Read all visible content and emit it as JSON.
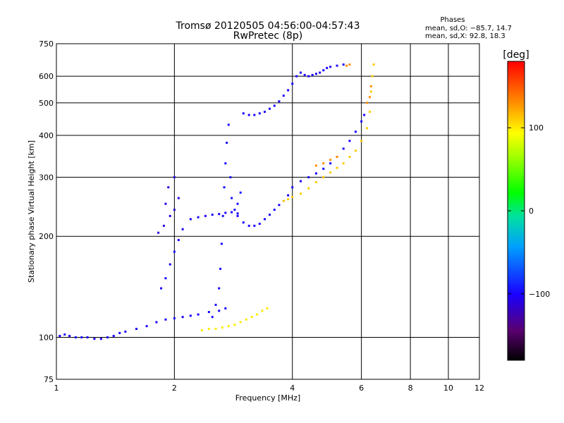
{
  "chart_data": {
    "type": "scatter",
    "title": "Tromsø 20120505 04:56:00-04:57:43",
    "subtitle": "RwPretec (8p)",
    "xlabel": "Frequency [MHz]",
    "ylabel": "Stationary phase Virtual Height [km]",
    "x_scale": "log",
    "y_scale": "log",
    "xlim": [
      1,
      12
    ],
    "ylim": [
      75,
      750
    ],
    "x_ticks": [
      1,
      2,
      4,
      6,
      8,
      10,
      12
    ],
    "x_tick_labels": [
      "1",
      "2",
      "4",
      "6",
      "8",
      "10",
      "12"
    ],
    "y_ticks": [
      75,
      100,
      200,
      300,
      400,
      500,
      600,
      750
    ],
    "y_tick_labels": [
      "75",
      "100",
      "200",
      "300",
      "400",
      "500",
      "600",
      "750"
    ],
    "grid": true,
    "phases_box": {
      "heading": "Phases",
      "line_o": "mean, sd,O: −85.7, 14.7",
      "line_x": "mean, sd,X:  92.8, 18.3"
    },
    "colorbar": {
      "label": "[deg]",
      "range": [
        -180,
        180
      ],
      "ticks": [
        100,
        0,
        -100
      ],
      "tick_labels": [
        "100",
        "0",
        "−100"
      ],
      "colormap": "rainbow"
    },
    "series": [
      {
        "phase": -100,
        "points": [
          [
            1.02,
            101
          ],
          [
            1.05,
            102
          ],
          [
            1.08,
            101
          ],
          [
            1.12,
            100
          ],
          [
            1.16,
            100
          ],
          [
            1.2,
            100
          ],
          [
            1.25,
            99
          ],
          [
            1.3,
            99
          ],
          [
            1.35,
            100
          ],
          [
            1.4,
            101
          ],
          [
            1.45,
            103
          ],
          [
            1.5,
            104
          ],
          [
            1.6,
            106
          ],
          [
            1.7,
            108
          ],
          [
            1.8,
            111
          ],
          [
            1.9,
            113
          ],
          [
            2.0,
            114
          ],
          [
            2.1,
            115
          ],
          [
            2.2,
            116
          ],
          [
            2.3,
            117
          ],
          [
            2.45,
            119
          ],
          [
            2.6,
            120
          ],
          [
            2.7,
            122
          ]
        ]
      },
      {
        "phase": -100,
        "points": [
          [
            1.85,
            140
          ],
          [
            1.9,
            150
          ],
          [
            1.95,
            165
          ],
          [
            2.0,
            180
          ],
          [
            2.05,
            195
          ],
          [
            2.1,
            210
          ],
          [
            2.2,
            225
          ],
          [
            2.3,
            228
          ],
          [
            2.4,
            230
          ],
          [
            2.5,
            232
          ],
          [
            2.6,
            233
          ],
          [
            2.7,
            235
          ],
          [
            2.8,
            236
          ],
          [
            2.9,
            234
          ]
        ]
      },
      {
        "phase": -110,
        "points": [
          [
            1.82,
            205
          ],
          [
            1.88,
            215
          ],
          [
            1.95,
            230
          ],
          [
            1.9,
            250
          ],
          [
            2.0,
            240
          ],
          [
            2.05,
            260
          ],
          [
            1.93,
            280
          ],
          [
            2.0,
            300
          ]
        ]
      },
      {
        "phase": -95,
        "points": [
          [
            2.5,
            115
          ],
          [
            2.55,
            125
          ],
          [
            2.6,
            140
          ],
          [
            2.62,
            160
          ],
          [
            2.64,
            190
          ],
          [
            2.66,
            230
          ],
          [
            2.68,
            280
          ],
          [
            2.7,
            330
          ],
          [
            2.72,
            380
          ],
          [
            2.75,
            430
          ],
          [
            2.78,
            300
          ],
          [
            2.8,
            260
          ],
          [
            2.85,
            240
          ],
          [
            2.9,
            250
          ],
          [
            2.95,
            270
          ]
        ]
      },
      {
        "phase": -100,
        "points": [
          [
            2.9,
            230
          ],
          [
            3.0,
            220
          ],
          [
            3.1,
            215
          ],
          [
            3.2,
            215
          ],
          [
            3.3,
            218
          ],
          [
            3.4,
            225
          ],
          [
            3.5,
            232
          ],
          [
            3.6,
            240
          ],
          [
            3.7,
            248
          ],
          [
            3.8,
            255
          ],
          [
            3.9,
            265
          ],
          [
            4.0,
            280
          ],
          [
            4.2,
            292
          ],
          [
            4.4,
            300
          ],
          [
            4.6,
            308
          ],
          [
            4.8,
            318
          ],
          [
            5.0,
            330
          ],
          [
            5.2,
            345
          ],
          [
            5.4,
            365
          ],
          [
            5.6,
            385
          ],
          [
            5.8,
            410
          ],
          [
            6.0,
            440
          ],
          [
            6.1,
            460
          ]
        ]
      },
      {
        "phase": -100,
        "points": [
          [
            3.0,
            465
          ],
          [
            3.1,
            460
          ],
          [
            3.2,
            460
          ],
          [
            3.3,
            465
          ],
          [
            3.4,
            470
          ],
          [
            3.5,
            480
          ],
          [
            3.6,
            490
          ],
          [
            3.7,
            505
          ],
          [
            3.8,
            525
          ],
          [
            3.9,
            545
          ],
          [
            4.0,
            570
          ],
          [
            4.1,
            600
          ],
          [
            4.2,
            615
          ],
          [
            4.3,
            605
          ],
          [
            4.4,
            600
          ],
          [
            4.5,
            605
          ],
          [
            4.6,
            610
          ],
          [
            4.7,
            615
          ],
          [
            4.8,
            625
          ],
          [
            4.9,
            635
          ],
          [
            5.0,
            640
          ],
          [
            5.2,
            645
          ],
          [
            5.4,
            650
          ]
        ]
      },
      {
        "phase": 100,
        "points": [
          [
            2.35,
            105
          ],
          [
            2.45,
            106
          ],
          [
            2.55,
            106
          ],
          [
            2.65,
            107
          ],
          [
            2.75,
            108
          ],
          [
            2.85,
            109
          ],
          [
            2.95,
            111
          ],
          [
            3.05,
            113
          ],
          [
            3.15,
            115
          ],
          [
            3.25,
            117
          ],
          [
            3.35,
            120
          ],
          [
            3.45,
            122
          ]
        ]
      },
      {
        "phase": 110,
        "points": [
          [
            3.8,
            255
          ],
          [
            3.9,
            258
          ],
          [
            4.0,
            262
          ],
          [
            4.2,
            268
          ],
          [
            4.4,
            278
          ],
          [
            4.6,
            290
          ],
          [
            4.8,
            300
          ],
          [
            5.0,
            310
          ],
          [
            5.2,
            320
          ],
          [
            5.4,
            330
          ],
          [
            5.6,
            345
          ],
          [
            5.8,
            360
          ],
          [
            6.0,
            385
          ],
          [
            6.2,
            420
          ],
          [
            6.3,
            470
          ],
          [
            6.35,
            540
          ],
          [
            6.4,
            600
          ],
          [
            6.45,
            650
          ]
        ]
      },
      {
        "phase": 130,
        "points": [
          [
            4.6,
            325
          ],
          [
            4.8,
            330
          ],
          [
            5.0,
            338
          ],
          [
            5.2,
            345
          ],
          [
            5.5,
            645
          ],
          [
            5.6,
            650
          ],
          [
            6.2,
            500
          ],
          [
            6.3,
            520
          ],
          [
            6.35,
            560
          ]
        ]
      }
    ]
  }
}
